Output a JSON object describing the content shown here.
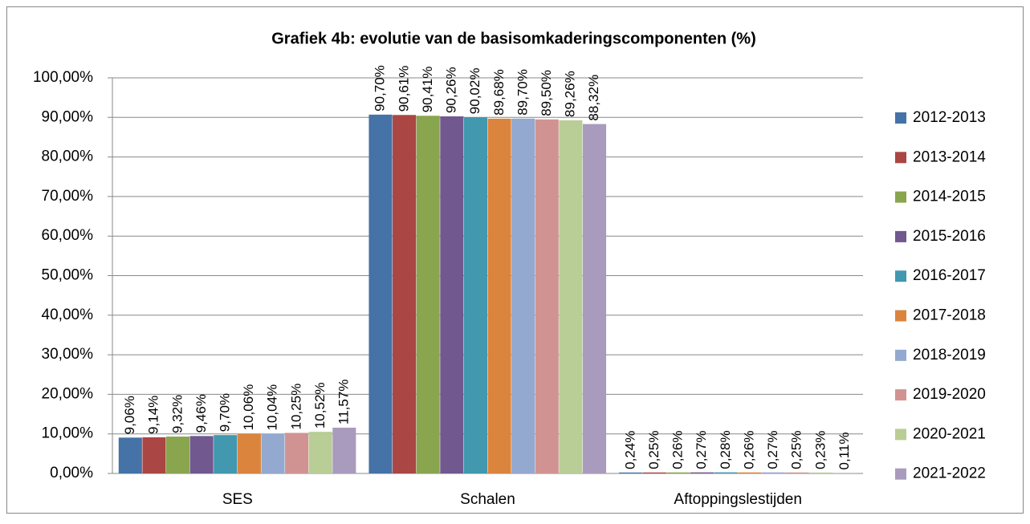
{
  "chart_data": {
    "type": "bar",
    "title": "Grafiek 4b: evolutie van de basisomkaderingscomponenten (%)",
    "categories": [
      "SES",
      "Schalen",
      "Aftoppingslestijden"
    ],
    "series": [
      {
        "name": "2012-2013",
        "color": "#4572A7",
        "values": [
          9.06,
          90.7,
          0.24
        ],
        "value_labels": [
          "9,06%",
          "90,70%",
          "0,24%"
        ]
      },
      {
        "name": "2013-2014",
        "color": "#AA4643",
        "values": [
          9.14,
          90.61,
          0.25
        ],
        "value_labels": [
          "9,14%",
          "90,61%",
          "0,25%"
        ]
      },
      {
        "name": "2014-2015",
        "color": "#89A54E",
        "values": [
          9.32,
          90.41,
          0.26
        ],
        "value_labels": [
          "9,32%",
          "90,41%",
          "0,26%"
        ]
      },
      {
        "name": "2015-2016",
        "color": "#71588F",
        "values": [
          9.46,
          90.26,
          0.27
        ],
        "value_labels": [
          "9,46%",
          "90,26%",
          "0,27%"
        ]
      },
      {
        "name": "2016-2017",
        "color": "#4198AF",
        "values": [
          9.7,
          90.02,
          0.28
        ],
        "value_labels": [
          "9,70%",
          "90,02%",
          "0,28%"
        ]
      },
      {
        "name": "2017-2018",
        "color": "#DB843D",
        "values": [
          10.06,
          89.68,
          0.26
        ],
        "value_labels": [
          "10,06%",
          "89,68%",
          "0,26%"
        ]
      },
      {
        "name": "2018-2019",
        "color": "#93A9CF",
        "values": [
          10.04,
          89.7,
          0.27
        ],
        "value_labels": [
          "10,04%",
          "89,70%",
          "0,27%"
        ]
      },
      {
        "name": "2019-2020",
        "color": "#D19392",
        "values": [
          10.25,
          89.5,
          0.25
        ],
        "value_labels": [
          "10,25%",
          "89,50%",
          "0,25%"
        ]
      },
      {
        "name": "2020-2021",
        "color": "#B9CD96",
        "values": [
          10.52,
          89.26,
          0.23
        ],
        "value_labels": [
          "10,52%",
          "89,26%",
          "0,23%"
        ]
      },
      {
        "name": "2021-2022",
        "color": "#A99BBD",
        "values": [
          11.57,
          88.32,
          0.11
        ],
        "value_labels": [
          "11,57%",
          "88,32%",
          "0,11%"
        ]
      }
    ],
    "ylim": [
      0,
      100
    ],
    "yticks": [
      {
        "value": 0,
        "label": "0,00%"
      },
      {
        "value": 10,
        "label": "10,00%"
      },
      {
        "value": 20,
        "label": "20,00%"
      },
      {
        "value": 30,
        "label": "30,00%"
      },
      {
        "value": 40,
        "label": "40,00%"
      },
      {
        "value": 50,
        "label": "50,00%"
      },
      {
        "value": 60,
        "label": "60,00%"
      },
      {
        "value": 70,
        "label": "70,00%"
      },
      {
        "value": 80,
        "label": "80,00%"
      },
      {
        "value": 90,
        "label": "90,00%"
      },
      {
        "value": 100,
        "label": "100,00%"
      }
    ],
    "grid": true,
    "legend": "right"
  }
}
